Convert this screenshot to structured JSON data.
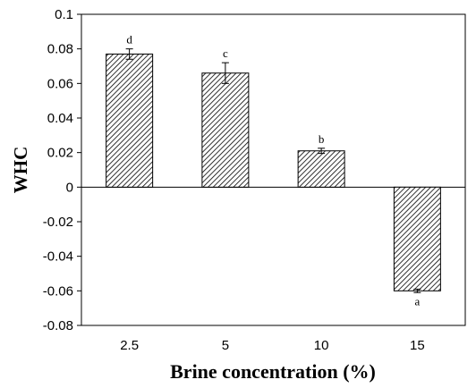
{
  "chart_data": {
    "type": "bar",
    "title": "",
    "xlabel": "Brine concentration (%)",
    "ylabel": "WHC",
    "categories": [
      "2.5",
      "5",
      "10",
      "15"
    ],
    "values": [
      0.077,
      0.066,
      0.021,
      -0.06
    ],
    "errors": [
      0.003,
      0.006,
      0.0015,
      0.001
    ],
    "significance_labels": [
      "d",
      "c",
      "b",
      "a"
    ],
    "ylim": [
      -0.08,
      0.1
    ],
    "yticks": [
      0.1,
      0.08,
      0.06,
      0.04,
      0.02,
      0,
      -0.02,
      -0.04,
      -0.06,
      -0.08
    ],
    "ytick_labels": [
      "0.1",
      "0.08",
      "0.06",
      "0.04",
      "0.02",
      "0",
      "-0.02",
      "-0.04",
      "-0.06",
      "-0.08"
    ],
    "bar_pattern": "diagonal-hatch",
    "grid": false,
    "legend": "none"
  }
}
